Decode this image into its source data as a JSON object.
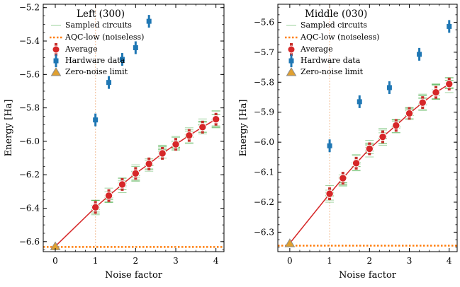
{
  "figure": {
    "xlabel_left": "Noise factor",
    "xlabel_right": "Noise factor"
  },
  "colors": {
    "average": "#d62728",
    "hardware": "#1f77b4",
    "sampled": "#2ca02c",
    "aqc": "#ff7f0e",
    "zero_noise": "#e0a030",
    "zero_noise_edge": "#8c8c8c"
  },
  "legend": {
    "sampled": "Sampled circuits",
    "aqc": "AQC-low (noiseless)",
    "average": "Average",
    "hardware": "Hardware data",
    "zero_noise": "Zero-noise limit"
  },
  "chart_data": [
    {
      "type": "line",
      "title": "Left (300)",
      "xlabel": "Noise factor",
      "ylabel": "Energy [Ha]",
      "xlim": [
        -0.3,
        4.2
      ],
      "ylim": [
        -6.66,
        -5.18
      ],
      "xticks": [
        0,
        1,
        2,
        3,
        4
      ],
      "yticks": [
        -6.6,
        -6.4,
        -6.2,
        -6.0,
        -5.8,
        -5.6,
        -5.4,
        -5.2
      ],
      "ytick_labels": [
        "−6.6",
        "−6.4",
        "−6.2",
        "−6.0",
        "−5.8",
        "−5.6",
        "−5.4",
        "−5.2"
      ],
      "xtick_labels": [
        "0",
        "1",
        "2",
        "3",
        "4"
      ],
      "noise_vline": 1,
      "aqc_low": -6.632,
      "series": [
        {
          "name": "Average",
          "x": [
            1,
            1.333,
            1.667,
            2,
            2.333,
            2.667,
            3,
            3.333,
            3.667,
            4
          ],
          "y": [
            -6.395,
            -6.325,
            -6.258,
            -6.192,
            -6.135,
            -6.072,
            -6.018,
            -5.965,
            -5.915,
            -5.868
          ]
        },
        {
          "name": "Hardware data",
          "x": [
            1,
            1.333,
            1.667,
            2,
            2.333
          ],
          "y": [
            -5.872,
            -5.648,
            -5.51,
            -5.44,
            -5.282
          ]
        }
      ],
      "extrapolation": {
        "x": [
          0,
          1
        ],
        "y": [
          -6.628,
          -6.395
        ]
      },
      "zero_noise_limit": {
        "x": 0,
        "y": -6.628
      }
    },
    {
      "type": "line",
      "title": "Middle (030)",
      "xlabel": "Noise factor",
      "ylabel": "Energy [Ha]",
      "xlim": [
        -0.3,
        4.2
      ],
      "ylim": [
        -6.365,
        -5.54
      ],
      "xticks": [
        0,
        1,
        2,
        3,
        4
      ],
      "yticks": [
        -6.3,
        -6.2,
        -6.1,
        -6.0,
        -5.9,
        -5.8,
        -5.7,
        -5.6
      ],
      "ytick_labels": [
        "−6.3",
        "−6.2",
        "−6.1",
        "−6.0",
        "−5.9",
        "−5.8",
        "−5.7",
        "−5.6"
      ],
      "xtick_labels": [
        "0",
        "1",
        "2",
        "3",
        "4"
      ],
      "noise_vline": 1,
      "aqc_low": -6.345,
      "series": [
        {
          "name": "Average",
          "x": [
            1,
            1.333,
            1.667,
            2,
            2.333,
            2.667,
            3,
            3.333,
            3.667,
            4
          ],
          "y": [
            -6.172,
            -6.12,
            -6.07,
            -6.022,
            -5.982,
            -5.944,
            -5.904,
            -5.868,
            -5.834,
            -5.806
          ]
        },
        {
          "name": "Hardware data",
          "x": [
            1,
            1.75,
            2.5,
            3.25,
            4
          ],
          "y": [
            -6.012,
            -5.865,
            -5.818,
            -5.707,
            -5.614
          ]
        }
      ],
      "extrapolation": {
        "x": [
          0,
          1
        ],
        "y": [
          -6.337,
          -6.172
        ]
      },
      "zero_noise_limit": {
        "x": 0,
        "y": -6.337
      }
    }
  ]
}
